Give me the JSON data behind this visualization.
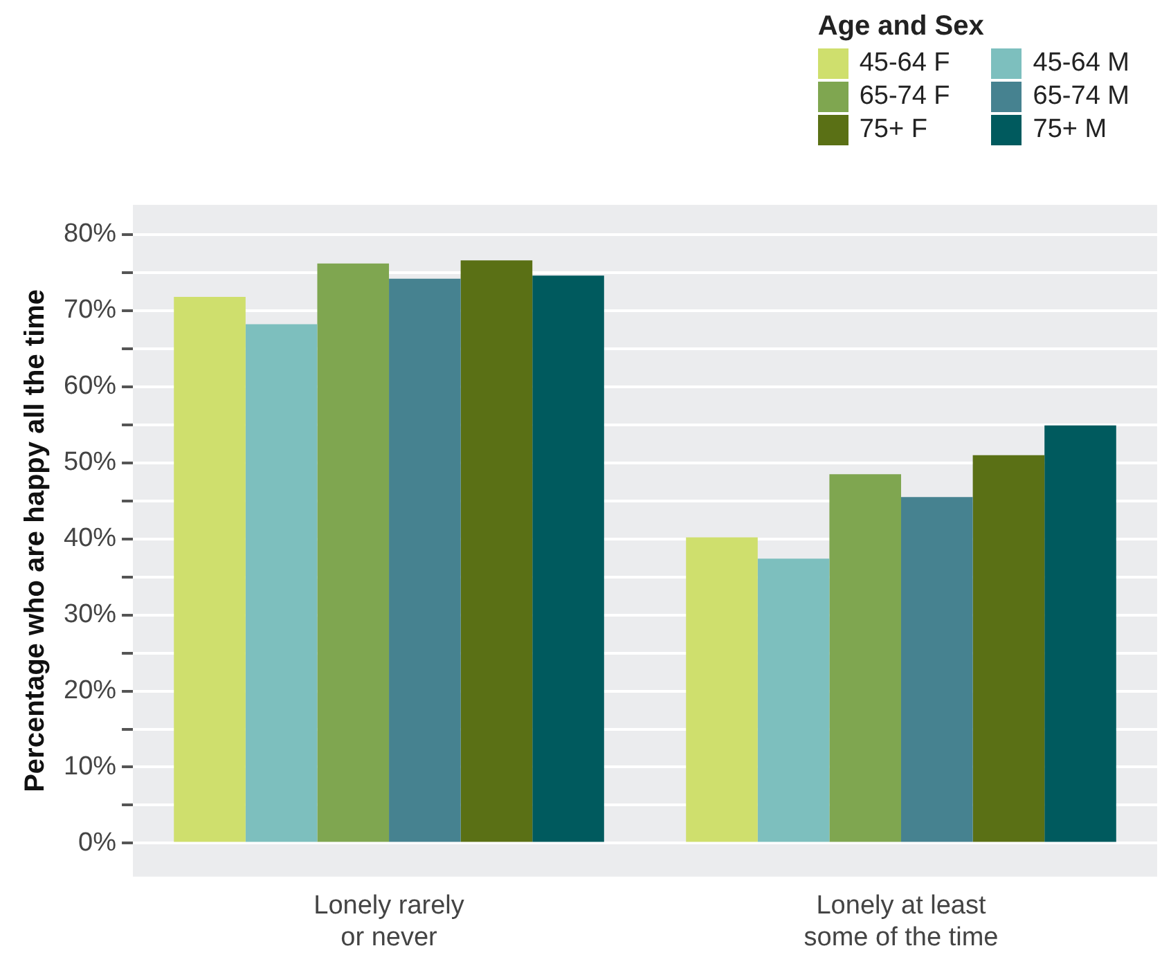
{
  "chart_data": {
    "type": "bar",
    "ylabel": "Percentage who are happy all the time",
    "legend_title": "Age and Sex",
    "categories": [
      "Lonely rarely or never",
      "Lonely at least some of the time"
    ],
    "series": [
      {
        "name": "45-64 F",
        "color": "#cfdf6d",
        "values": [
          71.8,
          40.2
        ]
      },
      {
        "name": "45-64 M",
        "color": "#7dbfbe",
        "values": [
          68.2,
          37.4
        ]
      },
      {
        "name": "65-74 F",
        "color": "#7fa650",
        "values": [
          76.2,
          48.5
        ]
      },
      {
        "name": "65-74 M",
        "color": "#468290",
        "values": [
          74.2,
          45.5
        ]
      },
      {
        "name": "75+ F",
        "color": "#5a7015",
        "values": [
          76.6,
          51.0
        ]
      },
      {
        "name": "75+ M",
        "color": "#005a5e",
        "values": [
          74.6,
          54.9
        ]
      }
    ],
    "ylim": [
      -4.4,
      83.9
    ],
    "yticks": [
      {
        "value": 0,
        "label": "0%"
      },
      {
        "value": 5,
        "label": null
      },
      {
        "value": 10,
        "label": "10%"
      },
      {
        "value": 15,
        "label": null
      },
      {
        "value": 20,
        "label": "20%"
      },
      {
        "value": 25,
        "label": null
      },
      {
        "value": 30,
        "label": "30%"
      },
      {
        "value": 35,
        "label": null
      },
      {
        "value": 40,
        "label": "40%"
      },
      {
        "value": 45,
        "label": null
      },
      {
        "value": 50,
        "label": "50%"
      },
      {
        "value": 55,
        "label": null
      },
      {
        "value": 60,
        "label": "60%"
      },
      {
        "value": 65,
        "label": null
      },
      {
        "value": 70,
        "label": "70%"
      },
      {
        "value": 75,
        "label": null
      },
      {
        "value": 80,
        "label": "80%"
      }
    ],
    "grid": "y",
    "legend": "top right"
  }
}
